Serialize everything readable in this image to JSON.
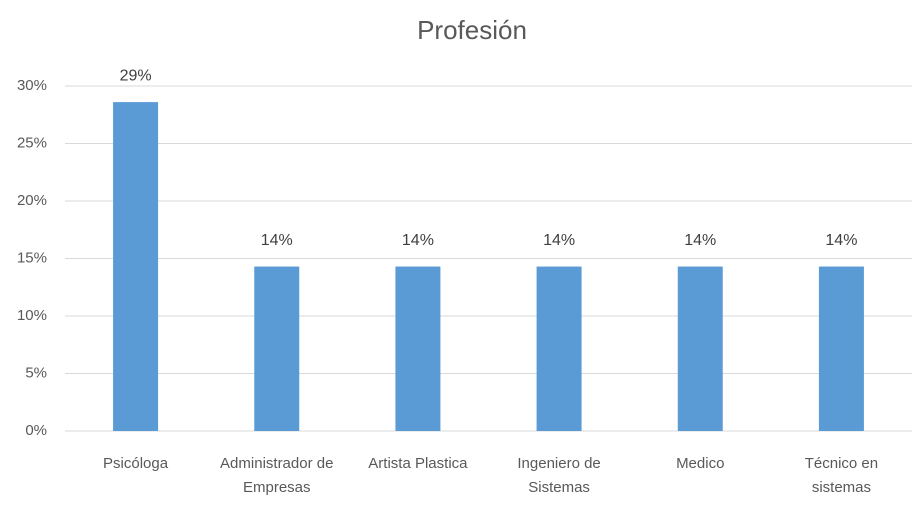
{
  "chart_data": {
    "type": "bar",
    "title": "Profesión",
    "categories": [
      "Psicóloga",
      "Administrador de Empresas",
      "Artista Plastica",
      "Ingeniero de Sistemas",
      "Medico",
      "Técnico en sistemas"
    ],
    "values": [
      28.6,
      14.3,
      14.3,
      14.3,
      14.3,
      14.3
    ],
    "value_labels": [
      "29%",
      "14%",
      "14%",
      "14%",
      "14%",
      "14%"
    ],
    "color": "#5b9bd5",
    "ylim": [
      0,
      30
    ],
    "yticks": [
      {
        "value": 0,
        "label": "0%"
      },
      {
        "value": 5,
        "label": "5%"
      },
      {
        "value": 10,
        "label": "10%"
      },
      {
        "value": 15,
        "label": "15%"
      },
      {
        "value": 20,
        "label": "20%"
      },
      {
        "value": 25,
        "label": "25%"
      },
      {
        "value": 30,
        "label": "30%"
      }
    ],
    "grid": true
  }
}
